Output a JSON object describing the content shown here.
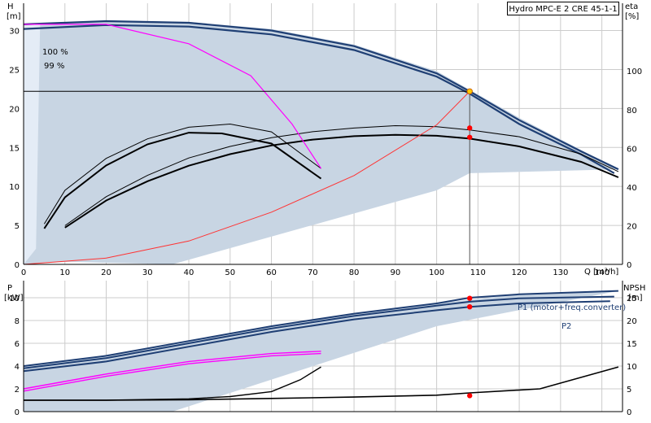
{
  "title": "Hydro MPC-E 2 CRE 45-1-1",
  "upper": {
    "y_left_label": [
      "H",
      "[m]"
    ],
    "y_right_label": [
      "eta",
      "[%]"
    ],
    "x_label": "Q [m³/h]",
    "x_ticks": [
      0,
      10,
      20,
      30,
      40,
      50,
      60,
      70,
      80,
      90,
      100,
      110,
      120,
      130,
      140
    ],
    "y_left_ticks": [
      0,
      5,
      10,
      15,
      20,
      25,
      30
    ],
    "y_right_ticks": [
      0,
      20,
      40,
      60,
      80,
      100
    ],
    "speed_labels": [
      "100 %",
      "99 %"
    ]
  },
  "lower": {
    "y_left_label": [
      "P",
      "[kW]"
    ],
    "y_right_label": [
      "NPSH",
      "[m]"
    ],
    "y_left_ticks": [
      0,
      2,
      4,
      6,
      8,
      10
    ],
    "y_right_ticks": [
      0,
      5,
      10,
      15,
      20,
      25
    ],
    "series_labels": [
      "P1 (motor+freq.converter)",
      "P2"
    ]
  },
  "colors": {
    "area": "#c8d5e3",
    "head_curve": "#1f3f74",
    "magenta": "#ff00ff",
    "system_curve": "#ff3333",
    "duty_point": "#ff0000",
    "operating_point": "#ffcc00",
    "grid": "#cccccc"
  },
  "chart_data": [
    {
      "type": "line",
      "panel": "head_efficiency",
      "x_label": "Q [m³/h]",
      "y_label": "H [m]",
      "y2_label": "eta [%]",
      "xlim": [
        0,
        145
      ],
      "ylim": [
        0,
        33.5
      ],
      "y2lim": [
        0,
        135
      ],
      "series": [
        {
          "name": "100 %",
          "axis": "H",
          "x": [
            0,
            20,
            40,
            60,
            80,
            100,
            108,
            120,
            135,
            144
          ],
          "y": [
            30.8,
            31.2,
            31.0,
            30.0,
            28.0,
            24.5,
            22.2,
            18.5,
            14.5,
            12.2
          ]
        },
        {
          "name": "99 %",
          "axis": "H",
          "x": [
            0,
            20,
            40,
            60,
            80,
            100,
            108,
            120,
            135,
            143
          ],
          "y": [
            30.2,
            30.7,
            30.5,
            29.5,
            27.5,
            24.1,
            21.9,
            18.0,
            14.1,
            11.7
          ]
        },
        {
          "axis": "H",
          "x": [
            5,
            10,
            20,
            30,
            40,
            50,
            60,
            72
          ],
          "y": [
            5.2,
            9.5,
            13.6,
            16.1,
            17.6,
            18.0,
            17.0,
            12.3
          ]
        },
        {
          "axis": "H",
          "x": [
            5,
            10,
            20,
            30,
            40,
            48,
            60,
            72
          ],
          "y": [
            4.6,
            8.6,
            12.7,
            15.4,
            16.9,
            16.8,
            15.5,
            11.0
          ]
        },
        {
          "axis": "eta",
          "x": [
            10,
            20,
            30,
            40,
            50,
            60,
            70,
            80,
            90,
            100,
            108,
            120,
            135,
            144
          ],
          "y": [
            20,
            35,
            46,
            55,
            61,
            65.5,
            68.6,
            70.5,
            71.7,
            71.2,
            69.5,
            66,
            57,
            48
          ]
        },
        {
          "axis": "eta",
          "x": [
            10,
            20,
            30,
            40,
            50,
            60,
            70,
            80,
            90,
            100,
            108,
            120,
            135,
            144
          ],
          "y": [
            19,
            33,
            43,
            51,
            57,
            61.5,
            64.5,
            66.3,
            67,
            66.5,
            65,
            61,
            53,
            45
          ]
        },
        {
          "axis": "H",
          "x": [
            0,
            20,
            40,
            60,
            80,
            100,
            108
          ],
          "y": [
            0,
            0.8,
            3.0,
            6.7,
            11.4,
            17.9,
            22.2
          ]
        },
        {
          "axis": "H",
          "x": [
            0,
            20,
            40,
            55,
            65,
            72
          ],
          "y": [
            30.8,
            30.8,
            28.3,
            24.2,
            18.0,
            12.3
          ]
        }
      ],
      "points": [
        {
          "x": 108,
          "y": 22.2,
          "axis": "H"
        },
        {
          "x": 108,
          "y": 70.5,
          "axis": "eta"
        },
        {
          "x": 108,
          "y": 65.7,
          "axis": "eta"
        }
      ]
    },
    {
      "type": "line",
      "panel": "power_npsh",
      "y_label": "P [kW]",
      "y2_label": "NPSH [m]",
      "xlim": [
        0,
        145
      ],
      "ylim": [
        0,
        11.5
      ],
      "y2lim": [
        0,
        28.75
      ],
      "series": [
        {
          "name": "P1 (motor+freq.converter)",
          "axis": "P",
          "x": [
            0,
            20,
            40,
            60,
            80,
            100,
            108,
            120,
            144
          ],
          "y": [
            4.0,
            4.9,
            6.2,
            7.5,
            8.6,
            9.5,
            10.0,
            10.3,
            10.6
          ]
        },
        {
          "axis": "P",
          "x": [
            0,
            20,
            40,
            60,
            80,
            100,
            108,
            120,
            143
          ],
          "y": [
            3.8,
            4.7,
            6.0,
            7.3,
            8.4,
            9.3,
            9.65,
            9.95,
            10.1
          ]
        },
        {
          "name": "P2",
          "axis": "P",
          "x": [
            0,
            20,
            40,
            60,
            80,
            100,
            108,
            120,
            142
          ],
          "y": [
            3.55,
            4.4,
            5.7,
            7.0,
            8.1,
            8.9,
            9.2,
            9.5,
            9.7
          ]
        },
        {
          "axis": "P",
          "x": [
            0,
            20,
            40,
            60,
            72
          ],
          "y": [
            2.0,
            3.3,
            4.4,
            5.1,
            5.3
          ]
        },
        {
          "axis": "P",
          "x": [
            0,
            20,
            40,
            60,
            72
          ],
          "y": [
            1.8,
            3.1,
            4.2,
            4.9,
            5.1
          ]
        },
        {
          "axis": "NPSH",
          "x": [
            0,
            20,
            40,
            60,
            80,
            100,
            108,
            125,
            144
          ],
          "y": [
            2.5,
            2.5,
            2.6,
            2.9,
            3.2,
            3.6,
            4.1,
            5.0,
            9.8
          ]
        },
        {
          "axis": "NPSH",
          "x": [
            0,
            20,
            40,
            50,
            60,
            67,
            72
          ],
          "y": [
            2.5,
            2.5,
            2.8,
            3.3,
            4.4,
            7.0,
            9.8
          ]
        }
      ],
      "points": [
        {
          "x": 108,
          "y": 9.95,
          "axis": "P"
        },
        {
          "x": 108,
          "y": 9.2,
          "axis": "P"
        },
        {
          "x": 108,
          "y": 3.5,
          "axis": "NPSH"
        }
      ]
    }
  ]
}
